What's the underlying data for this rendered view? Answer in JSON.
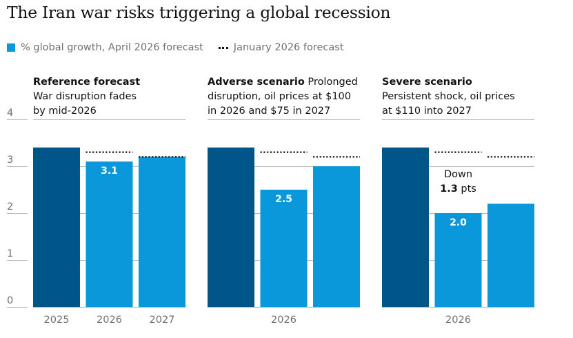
{
  "chart_data": {
    "type": "bar",
    "title": "The Iran war risks triggering a global recession",
    "legend": {
      "position": "top-left",
      "april_label": "% global growth, April 2026 forecast",
      "january_label": "January 2026 forecast"
    },
    "colors": {
      "base": "#005689",
      "april": "#0a98db",
      "january_line": "#121212",
      "gridline": "#bababa"
    },
    "y_axis": {
      "ylim": [
        0,
        4
      ],
      "ticks": [
        "0",
        "1",
        "2",
        "3",
        "4"
      ],
      "grid": true
    },
    "panels": [
      {
        "title_bold": "Reference forecast",
        "subtitle_lines": [
          "War disruption fades",
          "by mid-2026"
        ],
        "title_inline_rest": "",
        "categories": [
          "2025",
          "2026",
          "2027"
        ],
        "x_tick_labels": [
          "2025",
          "2026",
          "2027"
        ],
        "series": [
          {
            "name": "% global growth, April 2026 forecast",
            "values": [
              3.4,
              3.1,
              3.2
            ],
            "data_labels": [
              "",
              "3.1",
              ""
            ]
          },
          {
            "name": "January 2026 forecast",
            "values": [
              null,
              3.3,
              3.2
            ]
          }
        ]
      },
      {
        "title_bold": "Adverse scenario",
        "title_inline_rest": " Prolonged",
        "subtitle_lines": [
          "disruption, oil prices at $100",
          "in 2026 and $75 in 2027"
        ],
        "categories": [
          "2025",
          "2026",
          "2027"
        ],
        "x_tick_labels": [
          "",
          "2026",
          ""
        ],
        "series": [
          {
            "name": "% global growth, April 2026 forecast",
            "values": [
              3.4,
              2.5,
              3.0
            ],
            "data_labels": [
              "",
              "2.5",
              ""
            ]
          },
          {
            "name": "January 2026 forecast",
            "values": [
              null,
              3.3,
              3.2
            ]
          }
        ]
      },
      {
        "title_bold": "Severe scenario",
        "title_inline_rest": "",
        "subtitle_lines": [
          "Persistent shock, oil prices",
          "at $110 into 2027"
        ],
        "categories": [
          "2025",
          "2026",
          "2027"
        ],
        "x_tick_labels": [
          "",
          "2026",
          ""
        ],
        "series": [
          {
            "name": "% global growth, April 2026 forecast",
            "values": [
              3.4,
              2.0,
              2.2
            ],
            "data_labels": [
              "",
              "2.0",
              ""
            ]
          },
          {
            "name": "January 2026 forecast",
            "values": [
              null,
              3.3,
              3.2
            ]
          }
        ],
        "annotation": {
          "line1": "Down",
          "value": "1.3",
          "unit": " pts"
        }
      }
    ]
  }
}
